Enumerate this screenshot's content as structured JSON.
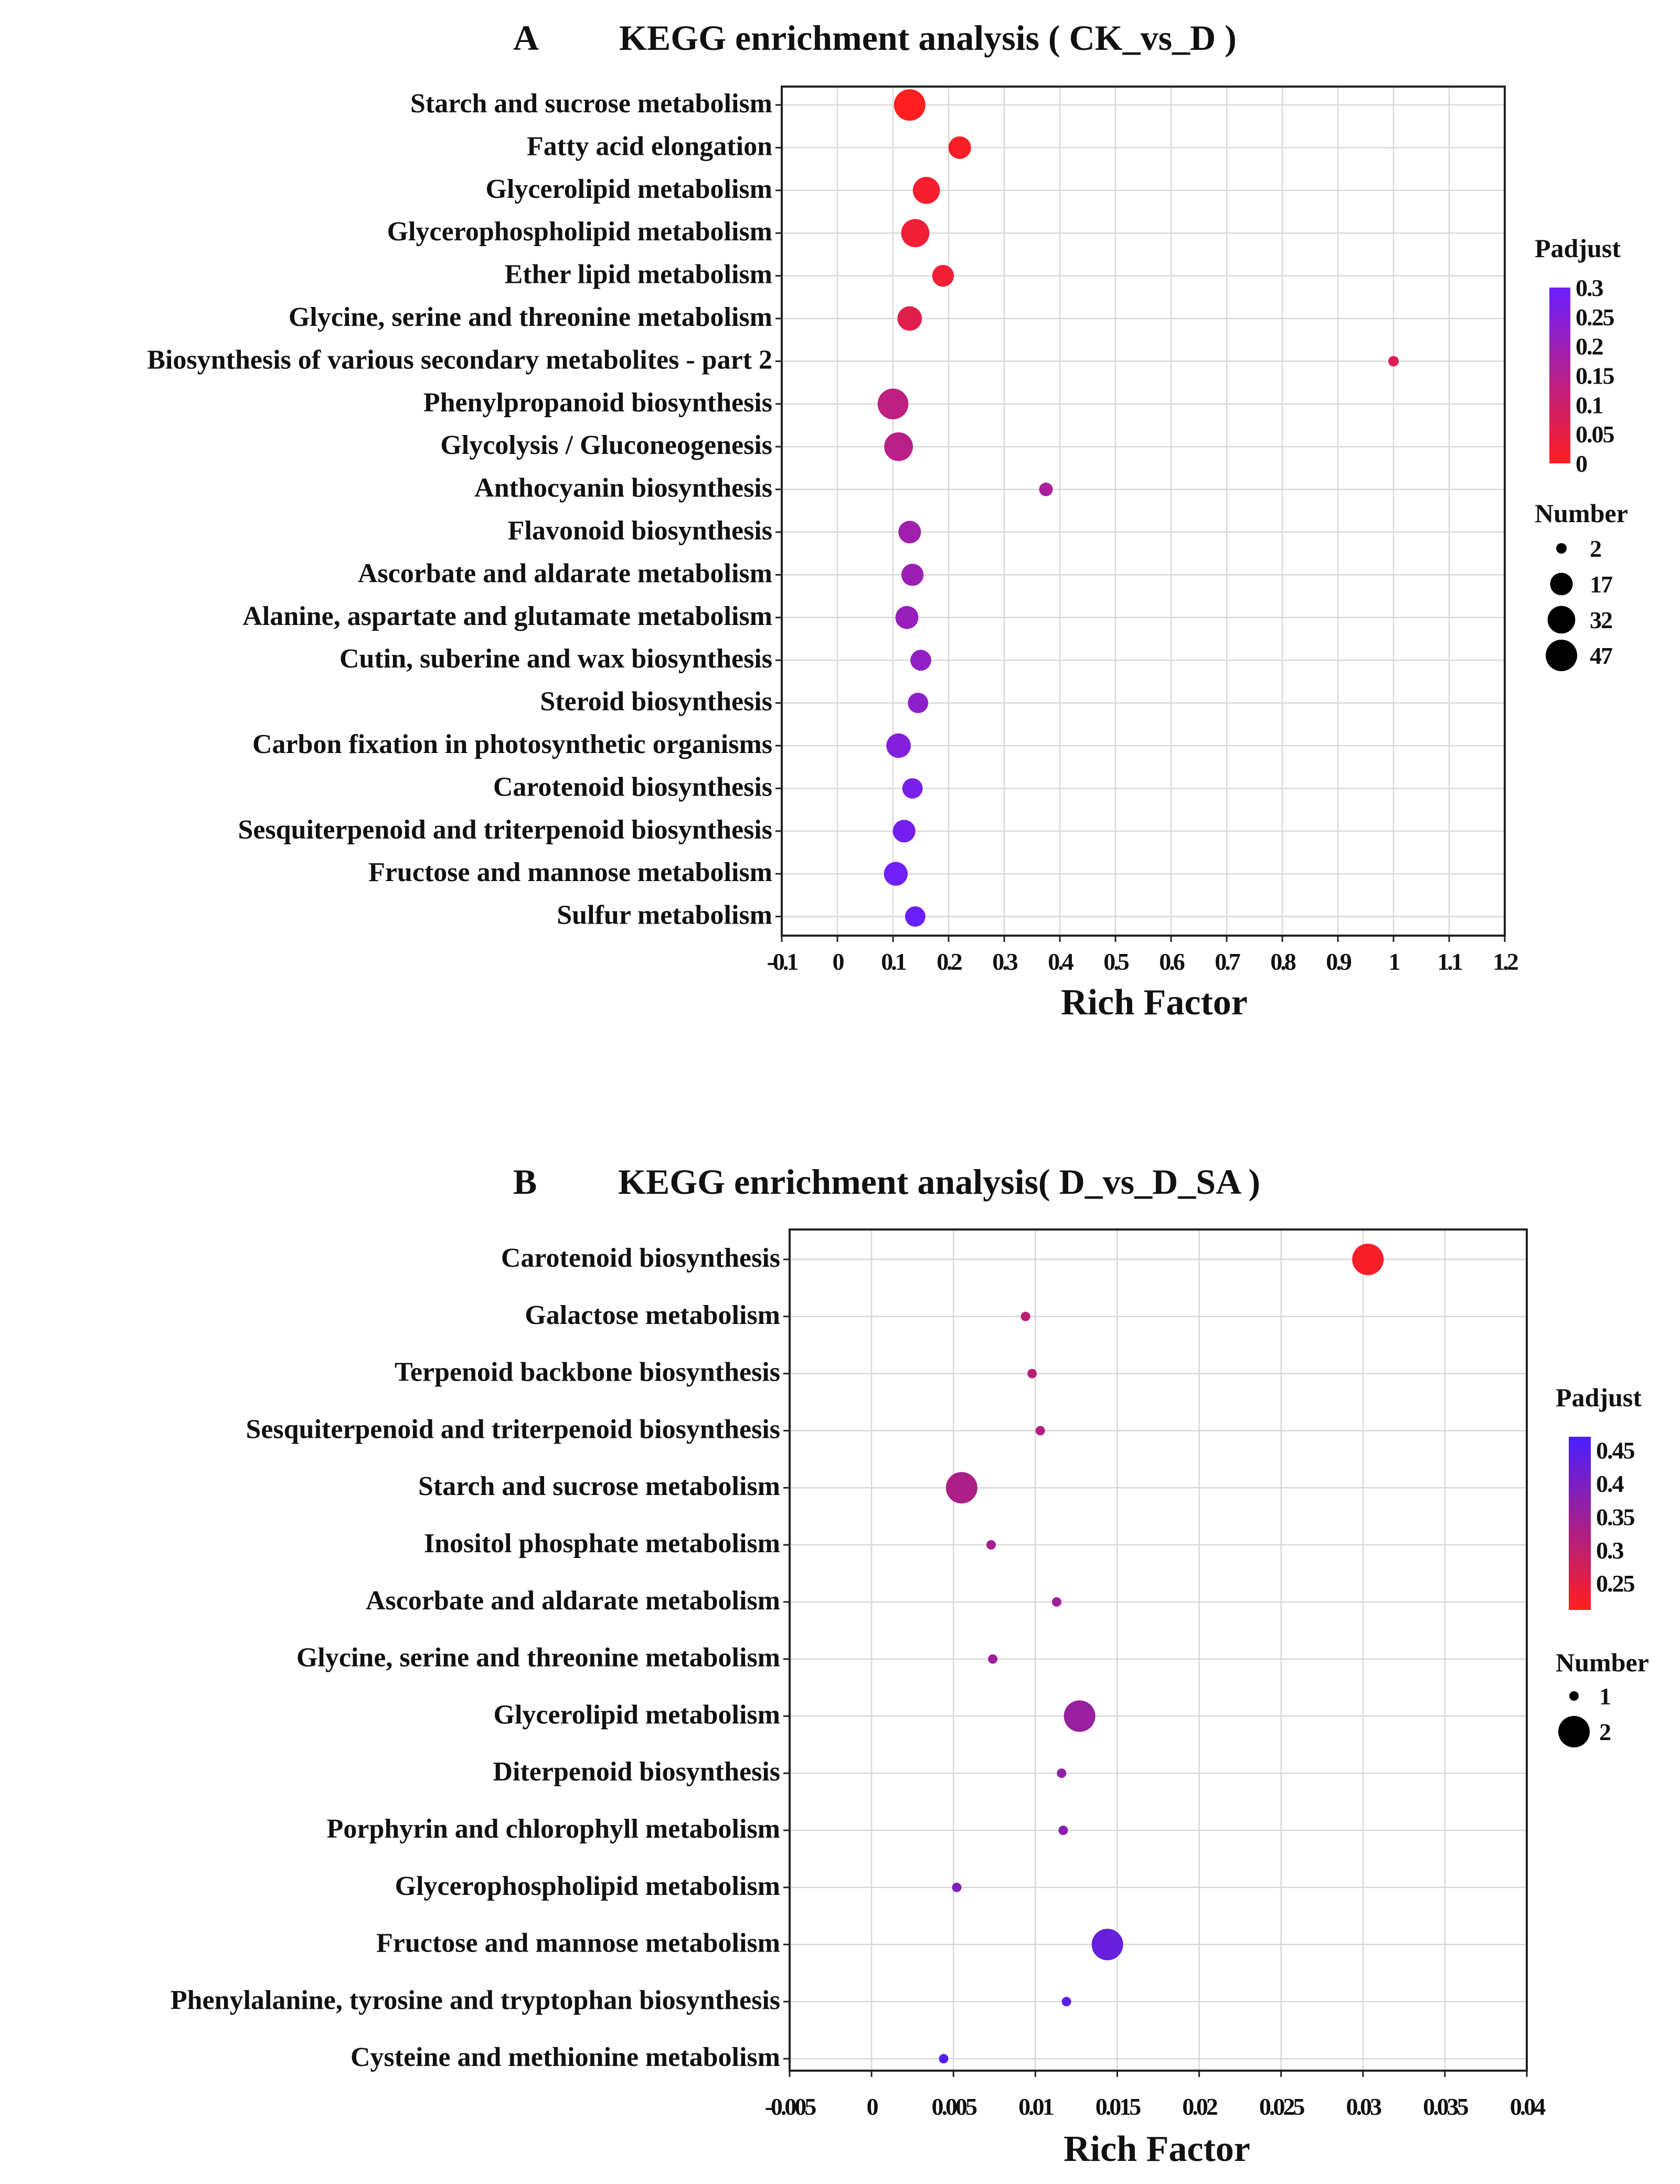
{
  "chart_data": [
    {
      "panel": "A",
      "type": "scatter",
      "title": "KEGG enrichment analysis ( CK_vs_D )",
      "xlabel": "Rich Factor",
      "ylabel": "",
      "xlim": [
        -0.1,
        1.2
      ],
      "xticks": [
        -0.1,
        0,
        0.1,
        0.2,
        0.3,
        0.4,
        0.5,
        0.6,
        0.7,
        0.8,
        0.9,
        1,
        1.1,
        1.2
      ],
      "xtick_labels": [
        "-0.1",
        "0",
        "0.1",
        "0.2",
        "0.3",
        "0.4",
        "0.5",
        "0.6",
        "0.7",
        "0.8",
        "0.9",
        "1",
        "1.1",
        "1.2"
      ],
      "grid": true,
      "color_legend": {
        "title": "Padjust",
        "min": 0,
        "max": 0.3,
        "ticks": [
          "0.3",
          "0.25",
          "0.2",
          "0.15",
          "0.1",
          "0.05",
          "0"
        ],
        "low_color": "#ff1f1f",
        "high_color": "#6a1fff"
      },
      "size_legend": {
        "title": "Number",
        "values": [
          2,
          17,
          32,
          47
        ],
        "labels": [
          "2",
          "17",
          "32",
          "47"
        ],
        "min": 2,
        "max": 47
      },
      "points": [
        {
          "label": "Starch and sucrose metabolism",
          "x": 0.13,
          "padj": 0.0,
          "number": 47
        },
        {
          "label": "Fatty acid elongation",
          "x": 0.22,
          "padj": 0.01,
          "number": 17
        },
        {
          "label": "Glycerolipid metabolism",
          "x": 0.16,
          "padj": 0.02,
          "number": 30
        },
        {
          "label": "Glycerophospholipid metabolism",
          "x": 0.14,
          "padj": 0.03,
          "number": 34
        },
        {
          "label": "Ether lipid metabolism",
          "x": 0.19,
          "padj": 0.03,
          "number": 15
        },
        {
          "label": "Glycine, serine and threonine metabolism",
          "x": 0.13,
          "padj": 0.06,
          "number": 22
        },
        {
          "label": "Biosynthesis of various secondary metabolites - part 2",
          "x": 1.0,
          "padj": 0.07,
          "number": 2
        },
        {
          "label": "Phenylpropanoid biosynthesis",
          "x": 0.1,
          "padj": 0.13,
          "number": 44
        },
        {
          "label": "Glycolysis / Gluconeogenesis",
          "x": 0.11,
          "padj": 0.14,
          "number": 36
        },
        {
          "label": "Anthocyanin biosynthesis",
          "x": 0.375,
          "padj": 0.17,
          "number": 3
        },
        {
          "label": "Flavonoid biosynthesis",
          "x": 0.13,
          "padj": 0.19,
          "number": 17
        },
        {
          "label": "Ascorbate and aldarate metabolism",
          "x": 0.135,
          "padj": 0.2,
          "number": 16
        },
        {
          "label": "Alanine, aspartate and glutamate metabolism",
          "x": 0.125,
          "padj": 0.21,
          "number": 18
        },
        {
          "label": "Cutin, suberine and wax biosynthesis",
          "x": 0.15,
          "padj": 0.22,
          "number": 13
        },
        {
          "label": "Steroid biosynthesis",
          "x": 0.145,
          "padj": 0.23,
          "number": 12
        },
        {
          "label": "Carbon fixation in photosynthetic organisms",
          "x": 0.11,
          "padj": 0.25,
          "number": 22
        },
        {
          "label": "Carotenoid biosynthesis",
          "x": 0.135,
          "padj": 0.27,
          "number": 12
        },
        {
          "label": "Sesquiterpenoid and triterpenoid biosynthesis",
          "x": 0.12,
          "padj": 0.28,
          "number": 17
        },
        {
          "label": "Fructose and mannose metabolism",
          "x": 0.105,
          "padj": 0.29,
          "number": 20
        },
        {
          "label": "Sulfur metabolism",
          "x": 0.14,
          "padj": 0.3,
          "number": 12
        }
      ]
    },
    {
      "panel": "B",
      "type": "scatter",
      "title": "KEGG enrichment analysis( D_vs_D_SA )",
      "xlabel": "Rich Factor",
      "ylabel": "",
      "xlim": [
        -0.005,
        0.04
      ],
      "xticks": [
        -0.005,
        0,
        0.005,
        0.01,
        0.015,
        0.02,
        0.025,
        0.03,
        0.035,
        0.04
      ],
      "xtick_labels": [
        "-0.005",
        "0",
        "0.005",
        "0.01",
        "0.015",
        "0.02",
        "0.025",
        "0.03",
        "0.035",
        "0.04"
      ],
      "grid": true,
      "color_legend": {
        "title": "Padjust",
        "min": 0.21,
        "max": 0.47,
        "ticks": [
          "0.45",
          "0.4",
          "0.35",
          "0.3",
          "0.25"
        ],
        "tick_values": [
          0.45,
          0.4,
          0.35,
          0.3,
          0.25
        ],
        "low_color": "#ff1f1f",
        "high_color": "#4a1fff"
      },
      "size_legend": {
        "title": "Number",
        "values": [
          1,
          2
        ],
        "labels": [
          "1",
          "2"
        ],
        "min": 1,
        "max": 2
      },
      "points": [
        {
          "label": "Carotenoid biosynthesis",
          "x": 0.0303,
          "padj": 0.22,
          "number": 2
        },
        {
          "label": "Galactose metabolism",
          "x": 0.0094,
          "padj": 0.31,
          "number": 1
        },
        {
          "label": "Terpenoid backbone biosynthesis",
          "x": 0.0098,
          "padj": 0.31,
          "number": 1
        },
        {
          "label": "Sesquiterpenoid and triterpenoid biosynthesis",
          "x": 0.0103,
          "padj": 0.32,
          "number": 1
        },
        {
          "label": "Starch and sucrose metabolism",
          "x": 0.0055,
          "padj": 0.33,
          "number": 2
        },
        {
          "label": "Inositol phosphate metabolism",
          "x": 0.0073,
          "padj": 0.34,
          "number": 1
        },
        {
          "label": "Ascorbate and aldarate metabolism",
          "x": 0.0113,
          "padj": 0.35,
          "number": 1
        },
        {
          "label": "Glycine, serine and threonine metabolism",
          "x": 0.0074,
          "padj": 0.35,
          "number": 1
        },
        {
          "label": "Glycerolipid metabolism",
          "x": 0.0127,
          "padj": 0.36,
          "number": 2
        },
        {
          "label": "Diterpenoid biosynthesis",
          "x": 0.0116,
          "padj": 0.37,
          "number": 1
        },
        {
          "label": "Porphyrin and chlorophyll metabolism",
          "x": 0.0117,
          "padj": 0.38,
          "number": 1
        },
        {
          "label": "Glycerophospholipid metabolism",
          "x": 0.0052,
          "padj": 0.39,
          "number": 1
        },
        {
          "label": "Fructose and mannose metabolism",
          "x": 0.0144,
          "padj": 0.43,
          "number": 2
        },
        {
          "label": "Phenylalanine, tyrosine and tryptophan biosynthesis",
          "x": 0.0119,
          "padj": 0.44,
          "number": 1
        },
        {
          "label": "Cysteine and methionine metabolism",
          "x": 0.0044,
          "padj": 0.46,
          "number": 1
        }
      ]
    }
  ]
}
